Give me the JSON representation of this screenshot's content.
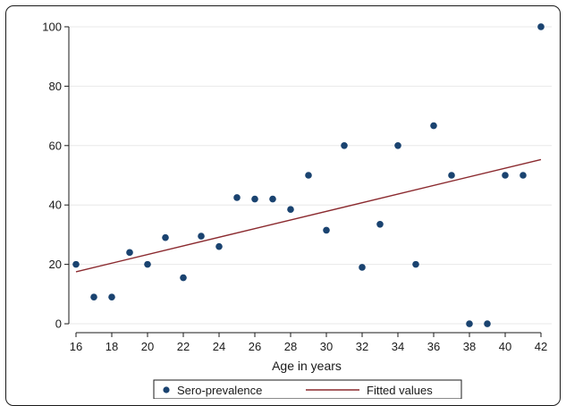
{
  "chart_data": {
    "type": "scatter",
    "xlabel": "Age in years",
    "ylabel": "",
    "xlim": [
      15.6,
      42.6
    ],
    "ylim": [
      -3,
      103
    ],
    "x_ticks": [
      16,
      18,
      20,
      22,
      24,
      26,
      28,
      30,
      32,
      34,
      36,
      38,
      40,
      42
    ],
    "y_ticks": [
      0,
      20,
      40,
      60,
      80,
      100
    ],
    "grid": "horizontal",
    "legend_position": "bottom",
    "colors": {
      "points": "#1a4370",
      "line": "#8b2a2f",
      "grid": "#e8e8e8",
      "axis": "#1a1a1a"
    },
    "series": [
      {
        "name": "Sero-prevalence",
        "type": "scatter",
        "points": [
          [
            16,
            20
          ],
          [
            17,
            9
          ],
          [
            18,
            9
          ],
          [
            19,
            24
          ],
          [
            20,
            20
          ],
          [
            21,
            29
          ],
          [
            22,
            15.5
          ],
          [
            23,
            29.5
          ],
          [
            24,
            26
          ],
          [
            25,
            42.5
          ],
          [
            26,
            42
          ],
          [
            27,
            42
          ],
          [
            28,
            38.5
          ],
          [
            29,
            50
          ],
          [
            30,
            31.5
          ],
          [
            31,
            60
          ],
          [
            32,
            19
          ],
          [
            33,
            33.5
          ],
          [
            34,
            60
          ],
          [
            35,
            20
          ],
          [
            36,
            66.7
          ],
          [
            37,
            50
          ],
          [
            38,
            0
          ],
          [
            39,
            0
          ],
          [
            40,
            50
          ],
          [
            41,
            50
          ],
          [
            42,
            100
          ]
        ]
      },
      {
        "name": "Fitted values",
        "type": "line",
        "points": [
          [
            16,
            17.5
          ],
          [
            42,
            55.3
          ]
        ]
      }
    ]
  }
}
